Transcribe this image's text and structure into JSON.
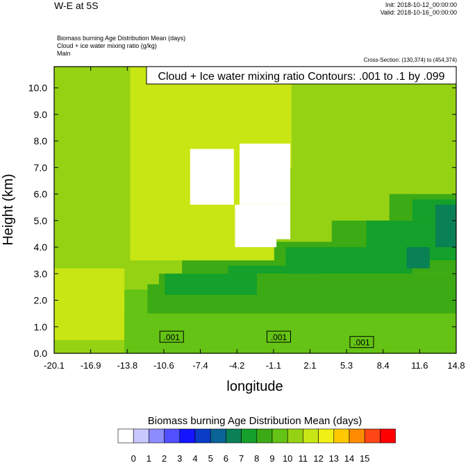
{
  "header": {
    "title": "W-E at 5S",
    "init": "Init: 2018-10-12_00:00:00",
    "valid": "Valid: 2018-10-16_00:00:00",
    "fields": [
      "Biomass burning Age Distribution Mean   (days)",
      "Cloud + ice water mixing ratio   (g/kg)",
      "Main"
    ],
    "cross_section": "Cross-Section: (130,374) to (454,374)"
  },
  "chart_data": {
    "type": "heatmap",
    "title": "Cloud + Ice water mixing ratio Contours: .001 to .1 by .099",
    "xlabel": "longitude",
    "ylabel": "Height (km)",
    "xlim": [
      -20.1,
      14.8
    ],
    "ylim": [
      0.0,
      10.8
    ],
    "x_ticks": [
      "-20.1",
      "-16.9",
      "-13.8",
      "-10.6",
      "-7.4",
      "-4.2",
      "-1.1",
      "2.1",
      "5.3",
      "8.4",
      "11.6",
      "14.8"
    ],
    "y_ticks": [
      "0.0",
      "1.0",
      "2.0",
      "3.0",
      "4.0",
      "5.0",
      "6.0",
      "7.0",
      "8.0",
      "9.0",
      "10.0"
    ],
    "y_tick_values": [
      0,
      1,
      2,
      3,
      4,
      5,
      6,
      7,
      8,
      9,
      10
    ],
    "contour_labels": [
      {
        "text": ".001",
        "x": -9.9,
        "y": 0.6
      },
      {
        "text": ".001",
        "x": -0.6,
        "y": 0.6
      },
      {
        "text": ".001",
        "x": 6.6,
        "y": 0.4
      }
    ],
    "colorbar": {
      "title": "Biomass burning Age Distribution Mean  (days)",
      "levels": [
        "0",
        "1",
        "2",
        "3",
        "4",
        "5",
        "6",
        "7",
        "8",
        "9",
        "10",
        "11",
        "12",
        "13",
        "14",
        "15"
      ],
      "colors": [
        "#ffffff",
        "#c8c8ff",
        "#8c8cff",
        "#5050ff",
        "#1414ff",
        "#0a3cc8",
        "#0a6496",
        "#0a8055",
        "#14a02a",
        "#3caa14",
        "#64c314",
        "#96d214",
        "#c8e614",
        "#f0f014",
        "#ffc800",
        "#ff8c00",
        "#ff4614",
        "#ff0000"
      ]
    },
    "regions": [
      {
        "lon": [
          -20.1,
          14.8
        ],
        "alt": [
          0,
          10.8
        ],
        "value": 10
      },
      {
        "lon": [
          -13.5,
          -1.0
        ],
        "alt": [
          3.5,
          10.8
        ],
        "value": 11
      },
      {
        "lon": [
          -7.5,
          0.5
        ],
        "alt": [
          7.0,
          10.8
        ],
        "value": 11
      },
      {
        "lon": [
          -20.1,
          -14.0
        ],
        "alt": [
          0.5,
          3.2
        ],
        "value": 11
      },
      {
        "lon": [
          -14.0,
          14.8
        ],
        "alt": [
          0,
          2.4
        ],
        "value": 9
      },
      {
        "lon": [
          -12.0,
          14.8
        ],
        "alt": [
          1.5,
          2.6
        ],
        "value": 8
      },
      {
        "lon": [
          -11.0,
          14.8
        ],
        "alt": [
          2.6,
          3.0
        ],
        "value": 8
      },
      {
        "lon": [
          -9.0,
          14.8
        ],
        "alt": [
          3.0,
          3.5
        ],
        "value": 8
      },
      {
        "lon": [
          -1.0,
          14.8
        ],
        "alt": [
          3.5,
          4.2
        ],
        "value": 8
      },
      {
        "lon": [
          4.0,
          14.8
        ],
        "alt": [
          4.2,
          5.0
        ],
        "value": 8
      },
      {
        "lon": [
          9.0,
          14.8
        ],
        "alt": [
          5.0,
          6.0
        ],
        "value": 8
      },
      {
        "lon": [
          -10.5,
          -2.5
        ],
        "alt": [
          2.2,
          3.0
        ],
        "value": 7
      },
      {
        "lon": [
          -5.0,
          3.0
        ],
        "alt": [
          3.0,
          3.3
        ],
        "value": 7
      },
      {
        "lon": [
          0.0,
          11.0
        ],
        "alt": [
          3.0,
          4.0
        ],
        "value": 7
      },
      {
        "lon": [
          7.0,
          14.8
        ],
        "alt": [
          3.5,
          5.0
        ],
        "value": 7
      },
      {
        "lon": [
          11.0,
          14.8
        ],
        "alt": [
          5.0,
          5.8
        ],
        "value": 7
      },
      {
        "lon": [
          10.5,
          12.5
        ],
        "alt": [
          3.2,
          4.0
        ],
        "value": 6
      },
      {
        "lon": [
          13.0,
          14.8
        ],
        "alt": [
          4.0,
          5.6
        ],
        "value": 6
      },
      {
        "lon": [
          -14.0,
          14.8
        ],
        "alt": [
          0,
          1.5
        ],
        "value": 9
      },
      {
        "lon": [
          -8.3,
          -4.5
        ],
        "alt": [
          5.6,
          7.7
        ],
        "value": 0
      },
      {
        "lon": [
          -4.0,
          0.4
        ],
        "alt": [
          5.6,
          7.9
        ],
        "value": 0
      },
      {
        "lon": [
          -4.4,
          -0.8
        ],
        "alt": [
          4.0,
          5.6
        ],
        "value": 0
      },
      {
        "lon": [
          -1.2,
          0.4
        ],
        "alt": [
          4.3,
          5.6
        ],
        "value": 0
      }
    ]
  }
}
